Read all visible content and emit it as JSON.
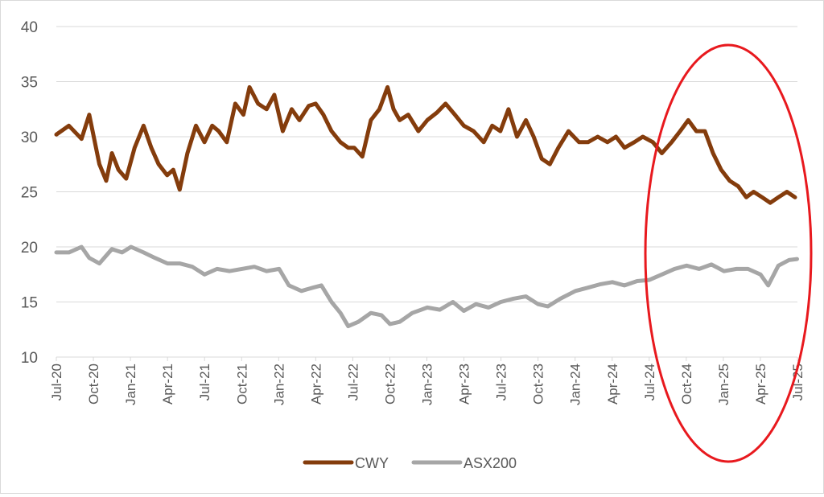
{
  "chart_data": {
    "type": "line",
    "title": "",
    "xlabel": "",
    "ylabel": "",
    "ylim": [
      10,
      40
    ],
    "yticks": [
      "10",
      "15",
      "20",
      "25",
      "30",
      "35",
      "40"
    ],
    "xticks": [
      "Jul-20",
      "Oct-20",
      "Jan-21",
      "Apr-21",
      "Jul-21",
      "Oct-21",
      "Jan-22",
      "Apr-22",
      "Jul-22",
      "Oct-22",
      "Jan-23",
      "Apr-23",
      "Jul-23",
      "Oct-23",
      "Jan-24",
      "Apr-24",
      "Jul-24",
      "Oct-24",
      "Jan-25",
      "Apr-25",
      "Jul-25"
    ],
    "grid": "horizontal",
    "legend_position": "bottom",
    "annotation": "red ellipse highlighting Jul-24 to Jul-25",
    "series": [
      {
        "name": "CWY",
        "color": "#843c0c",
        "x": [
          "2020-07-01",
          "2020-08-01",
          "2020-09-01",
          "2020-09-20",
          "2020-10-15",
          "2020-11-01",
          "2020-11-15",
          "2020-12-01",
          "2020-12-20",
          "2021-01-10",
          "2021-02-01",
          "2021-02-20",
          "2021-03-10",
          "2021-03-31",
          "2021-04-15",
          "2021-05-01",
          "2021-05-20",
          "2021-06-10",
          "2021-07-01",
          "2021-07-20",
          "2021-08-05",
          "2021-08-25",
          "2021-09-15",
          "2021-10-05",
          "2021-10-20",
          "2021-11-10",
          "2021-12-01",
          "2021-12-20",
          "2022-01-10",
          "2022-02-01",
          "2022-02-20",
          "2022-03-15",
          "2022-04-01",
          "2022-04-20",
          "2022-05-10",
          "2022-06-01",
          "2022-06-20",
          "2022-07-05",
          "2022-07-25",
          "2022-08-15",
          "2022-09-05",
          "2022-09-25",
          "2022-10-10",
          "2022-10-25",
          "2022-11-15",
          "2022-12-10",
          "2023-01-01",
          "2023-01-25",
          "2023-02-15",
          "2023-03-10",
          "2023-04-01",
          "2023-04-25",
          "2023-05-20",
          "2023-06-10",
          "2023-06-30",
          "2023-07-20",
          "2023-08-10",
          "2023-09-01",
          "2023-09-20",
          "2023-10-10",
          "2023-10-30",
          "2023-11-20",
          "2023-12-15",
          "2024-01-10",
          "2024-02-01",
          "2024-02-25",
          "2024-03-20",
          "2024-04-10",
          "2024-05-01",
          "2024-05-25",
          "2024-06-15",
          "2024-07-10",
          "2024-08-01",
          "2024-08-25",
          "2024-09-15",
          "2024-10-05",
          "2024-10-25",
          "2024-11-15",
          "2024-12-05",
          "2024-12-25",
          "2025-01-15",
          "2025-02-05",
          "2025-02-25",
          "2025-03-15",
          "2025-04-05",
          "2025-04-25",
          "2025-05-15",
          "2025-06-05",
          "2025-06-25"
        ],
        "y": [
          30.2,
          31.0,
          29.8,
          32.0,
          27.5,
          26.0,
          28.5,
          27.0,
          26.2,
          29.0,
          31.0,
          29.0,
          27.5,
          26.5,
          27.0,
          25.2,
          28.5,
          31.0,
          29.5,
          31.0,
          30.5,
          29.5,
          33.0,
          32.0,
          34.5,
          33.0,
          32.5,
          33.8,
          30.5,
          32.5,
          31.5,
          32.8,
          33.0,
          32.0,
          30.5,
          29.5,
          29.0,
          29.0,
          28.2,
          31.5,
          32.5,
          34.5,
          32.5,
          31.5,
          32.0,
          30.5,
          31.5,
          32.2,
          33.0,
          32.0,
          31.0,
          30.5,
          29.5,
          31.0,
          30.5,
          32.5,
          30.0,
          31.5,
          30.0,
          28.0,
          27.5,
          29.0,
          30.5,
          29.5,
          29.5,
          30.0,
          29.5,
          30.0,
          29.0,
          29.5,
          30.0,
          29.5,
          28.5,
          29.5,
          30.5,
          31.5,
          30.5,
          30.5,
          28.5,
          27.0,
          26.0,
          25.5,
          24.5,
          25.0,
          24.5,
          24.0,
          24.5,
          25.0,
          24.5
        ]
      },
      {
        "name": "ASX200",
        "color": "#a6a6a6",
        "x": [
          "2020-07-01",
          "2020-08-01",
          "2020-09-01",
          "2020-09-20",
          "2020-10-15",
          "2020-11-15",
          "2020-12-10",
          "2021-01-01",
          "2021-02-01",
          "2021-03-01",
          "2021-04-01",
          "2021-05-01",
          "2021-06-01",
          "2021-07-01",
          "2021-08-01",
          "2021-09-01",
          "2021-10-01",
          "2021-11-01",
          "2021-12-01",
          "2022-01-01",
          "2022-01-25",
          "2022-02-25",
          "2022-03-25",
          "2022-04-15",
          "2022-05-10",
          "2022-06-01",
          "2022-06-20",
          "2022-07-15",
          "2022-08-15",
          "2022-09-10",
          "2022-10-01",
          "2022-10-25",
          "2022-11-25",
          "2023-01-01",
          "2023-02-01",
          "2023-03-05",
          "2023-04-01",
          "2023-05-01",
          "2023-06-01",
          "2023-07-01",
          "2023-08-01",
          "2023-09-01",
          "2023-10-01",
          "2023-10-25",
          "2023-11-25",
          "2024-01-01",
          "2024-02-01",
          "2024-03-01",
          "2024-04-01",
          "2024-05-01",
          "2024-06-01",
          "2024-07-01",
          "2024-08-01",
          "2024-09-01",
          "2024-10-01",
          "2024-11-01",
          "2024-12-01",
          "2025-01-01",
          "2025-02-01",
          "2025-03-01",
          "2025-04-01",
          "2025-04-20",
          "2025-05-15",
          "2025-06-10",
          "2025-06-30"
        ],
        "y": [
          19.5,
          19.5,
          20.0,
          19.0,
          18.5,
          19.8,
          19.5,
          20.0,
          19.5,
          19.0,
          18.5,
          18.5,
          18.2,
          17.5,
          18.0,
          17.8,
          18.0,
          18.2,
          17.8,
          18.0,
          16.5,
          16.0,
          16.3,
          16.5,
          15.0,
          14.0,
          12.8,
          13.2,
          14.0,
          13.8,
          13.0,
          13.2,
          14.0,
          14.5,
          14.3,
          15.0,
          14.2,
          14.8,
          14.5,
          15.0,
          15.3,
          15.5,
          14.8,
          14.6,
          15.3,
          16.0,
          16.3,
          16.6,
          16.8,
          16.5,
          16.9,
          17.0,
          17.5,
          18.0,
          18.3,
          18.0,
          18.4,
          17.8,
          18.0,
          18.0,
          17.5,
          16.5,
          18.3,
          18.8,
          18.9
        ]
      }
    ]
  }
}
